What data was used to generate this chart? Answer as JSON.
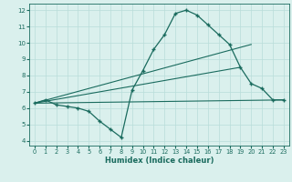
{
  "line1_x": [
    0,
    1,
    2,
    3,
    4,
    5,
    6,
    7,
    8,
    9,
    10,
    11,
    12,
    13,
    14,
    15,
    16,
    17,
    18,
    19,
    20,
    21,
    22,
    23
  ],
  "line1_y": [
    6.3,
    6.5,
    6.2,
    6.1,
    6.0,
    5.8,
    5.2,
    4.7,
    4.2,
    7.1,
    8.3,
    9.6,
    10.5,
    11.8,
    12.0,
    11.7,
    11.1,
    10.5,
    9.9,
    8.5,
    7.5,
    7.2,
    6.5,
    6.5
  ],
  "line2_x": [
    0,
    23
  ],
  "line2_y": [
    6.3,
    6.5
  ],
  "line3_x": [
    0,
    20
  ],
  "line3_y": [
    6.3,
    9.9
  ],
  "line4_x": [
    0,
    19
  ],
  "line4_y": [
    6.3,
    8.5
  ],
  "color": "#1a6b5e",
  "bg_color": "#daf0ed",
  "grid_color": "#b8ddd9",
  "xlabel": "Humidex (Indice chaleur)",
  "xlim": [
    -0.5,
    23.5
  ],
  "ylim": [
    3.7,
    12.4
  ],
  "xticks": [
    0,
    1,
    2,
    3,
    4,
    5,
    6,
    7,
    8,
    9,
    10,
    11,
    12,
    13,
    14,
    15,
    16,
    17,
    18,
    19,
    20,
    21,
    22,
    23
  ],
  "yticks": [
    4,
    5,
    6,
    7,
    8,
    9,
    10,
    11,
    12
  ]
}
